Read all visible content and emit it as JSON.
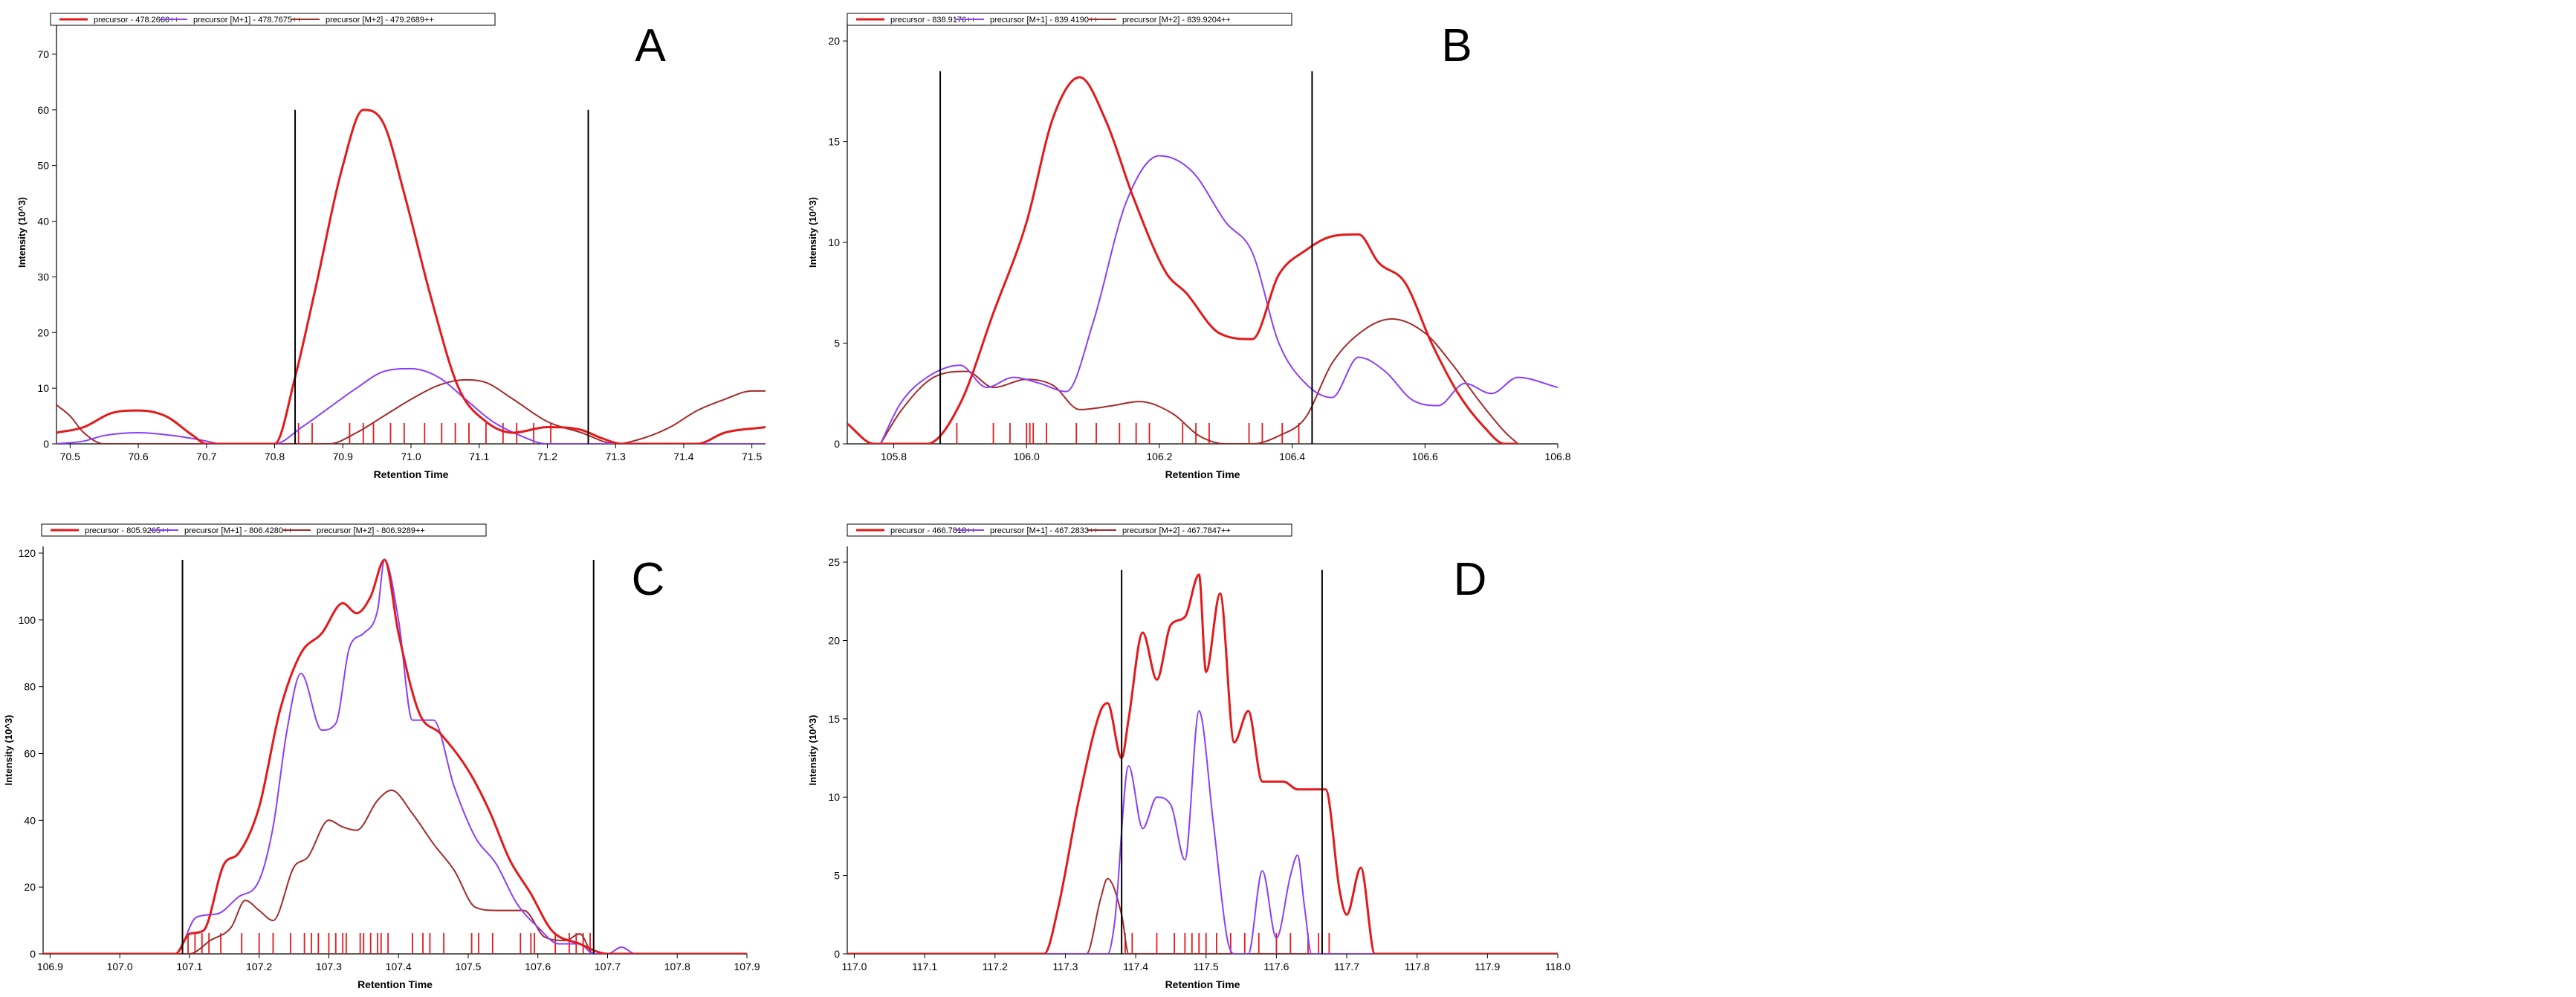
{
  "chart_data": [
    {
      "type": "line",
      "panel_label": "A",
      "xlabel": "Retention Time",
      "ylabel": "Intensity (10^3)",
      "xlim": [
        70.48,
        71.52
      ],
      "ylim": [
        0,
        76
      ],
      "xticks": [
        "70.5",
        "70.6",
        "70.7",
        "70.8",
        "70.9",
        "71.0",
        "71.1",
        "71.2",
        "71.3",
        "71.4",
        "71.5"
      ],
      "yticks": [
        "0",
        "10",
        "20",
        "30",
        "40",
        "50",
        "60",
        "70"
      ],
      "vlines": [
        70.83,
        71.26
      ],
      "vline_top": 60,
      "ms_ticks": [
        70.835,
        70.855,
        70.91,
        70.93,
        70.945,
        70.97,
        70.99,
        71.02,
        71.045,
        71.065,
        71.085,
        71.11,
        71.135,
        71.155,
        71.18,
        71.205
      ],
      "series": [
        {
          "name": "precursor - 478.2660++",
          "color": "#e31a1c",
          "width": 3,
          "x": [
            70.48,
            70.52,
            70.56,
            70.6,
            70.64,
            70.68,
            70.7,
            70.72,
            70.78,
            70.8,
            70.83,
            70.86,
            70.9,
            70.93,
            70.96,
            70.99,
            71.03,
            71.07,
            71.11,
            71.15,
            71.2,
            71.25,
            71.28,
            71.31,
            71.34,
            71.38,
            71.42,
            71.46,
            71.52
          ],
          "y": [
            2,
            3,
            5.5,
            6,
            5,
            1.5,
            0,
            0,
            0,
            0,
            12,
            28,
            50,
            60,
            57.5,
            45,
            26,
            10,
            4,
            2,
            3,
            2.5,
            1,
            0,
            0,
            0,
            0,
            2,
            3
          ]
        },
        {
          "name": "precursor [M+1] - 478.7675++",
          "color": "#8a3ffc",
          "width": 2,
          "x": [
            70.48,
            70.52,
            70.55,
            70.6,
            70.65,
            70.7,
            70.72,
            70.78,
            70.8,
            70.84,
            70.88,
            70.92,
            70.96,
            71.0,
            71.04,
            71.08,
            71.12,
            71.16,
            71.2,
            71.25,
            71.3,
            71.52
          ],
          "y": [
            0,
            0.5,
            1.5,
            2,
            1.5,
            0.5,
            0,
            0,
            0,
            3,
            6.5,
            10,
            13,
            13.5,
            12,
            8,
            4,
            1.5,
            0,
            0,
            0,
            0
          ]
        },
        {
          "name": "precursor [M+2] - 479.2689++",
          "color": "#a52a2a",
          "width": 2,
          "x": [
            70.48,
            70.5,
            70.52,
            70.55,
            70.6,
            70.7,
            70.8,
            70.88,
            70.92,
            70.96,
            71.0,
            71.04,
            71.08,
            71.11,
            71.15,
            71.2,
            71.25,
            71.3,
            71.34,
            71.38,
            71.42,
            71.46,
            71.5,
            71.52
          ],
          "y": [
            7,
            5,
            2,
            0,
            0,
            0,
            0,
            0,
            2,
            5,
            8,
            10.5,
            11.5,
            11,
            8,
            4,
            2,
            0,
            1,
            3,
            6,
            8,
            9.5,
            9.5
          ]
        }
      ]
    },
    {
      "type": "line",
      "panel_label": "B",
      "xlabel": "Retention Time",
      "ylabel": "Intensity (10^3)",
      "xlim": [
        105.73,
        106.8
      ],
      "ylim": [
        0,
        21
      ],
      "xticks": [
        "105.8",
        "106.0",
        "106.2",
        "106.4",
        "106.6",
        "106.8"
      ],
      "yticks": [
        "0",
        "5",
        "10",
        "15",
        "20"
      ],
      "vlines": [
        105.87,
        106.43
      ],
      "vline_top": 18.5,
      "ms_ticks": [
        105.87,
        105.895,
        105.95,
        105.975,
        106.0,
        106.005,
        106.01,
        106.03,
        106.075,
        106.105,
        106.14,
        106.165,
        106.185,
        106.235,
        106.255,
        106.275,
        106.335,
        106.355,
        106.385,
        106.41
      ],
      "series": [
        {
          "name": "precursor - 838.9176++",
          "color": "#e31a1c",
          "width": 3,
          "x": [
            105.73,
            105.77,
            105.8,
            105.85,
            105.9,
            105.95,
            106.0,
            106.04,
            106.08,
            106.12,
            106.16,
            106.21,
            106.24,
            106.29,
            106.34,
            106.38,
            106.42,
            106.46,
            106.5,
            106.53,
            106.57,
            106.61,
            106.65,
            106.69,
            106.72,
            106.74
          ],
          "y": [
            1,
            0,
            0,
            0,
            2,
            6.5,
            11,
            16.2,
            18.2,
            16,
            12.3,
            8.5,
            7.5,
            5.5,
            5.2,
            8.4,
            9.6,
            10.3,
            10.4,
            9,
            8,
            5,
            2.5,
            0.8,
            0,
            0
          ]
        },
        {
          "name": "precursor [M+1] - 839.4190++",
          "color": "#8a3ffc",
          "width": 2,
          "x": [
            105.78,
            105.81,
            105.85,
            105.9,
            105.94,
            105.98,
            106.02,
            106.06,
            106.1,
            106.15,
            106.2,
            106.25,
            106.3,
            106.34,
            106.38,
            106.42,
            106.46,
            106.5,
            106.54,
            106.58,
            106.62,
            106.66,
            106.7,
            106.74,
            106.8
          ],
          "y": [
            0,
            2,
            3.3,
            3.9,
            2.8,
            3.3,
            3.0,
            2.6,
            6,
            12,
            14.3,
            13.5,
            11,
            9.5,
            5,
            3,
            2.3,
            4.3,
            3.6,
            2.2,
            1.9,
            3.0,
            2.5,
            3.3,
            2.8
          ]
        },
        {
          "name": "precursor [M+2] - 839.9204++",
          "color": "#a52a2a",
          "width": 2,
          "x": [
            105.78,
            105.81,
            105.86,
            105.91,
            105.95,
            106.0,
            106.04,
            106.08,
            106.13,
            106.17,
            106.22,
            106.26,
            106.3,
            106.34,
            106.38,
            106.42,
            106.46,
            106.51,
            106.55,
            106.6,
            106.64,
            106.68,
            106.72,
            106.74
          ],
          "y": [
            0,
            1.6,
            3.3,
            3.6,
            2.8,
            3.2,
            2.9,
            1.7,
            1.9,
            2.1,
            1.5,
            0.4,
            0,
            0,
            0.4,
            1.3,
            4,
            5.7,
            6.2,
            5.5,
            4,
            2.2,
            0.6,
            0
          ]
        }
      ]
    },
    {
      "type": "line",
      "panel_label": "C",
      "xlabel": "Retention Time",
      "ylabel": "Intensity (10^3)",
      "xlim": [
        106.89,
        107.9
      ],
      "ylim": [
        0,
        122
      ],
      "xticks": [
        "106.9",
        "107.0",
        "107.1",
        "107.2",
        "107.3",
        "107.4",
        "107.5",
        "107.6",
        "107.7",
        "107.8",
        "107.9"
      ],
      "yticks": [
        "0",
        "20",
        "40",
        "60",
        "80",
        "100",
        "120"
      ],
      "vlines": [
        107.09,
        107.68
      ],
      "vline_top": 118,
      "ms_ticks": [
        107.098,
        107.108,
        107.118,
        107.128,
        107.145,
        107.175,
        107.2,
        107.22,
        107.245,
        107.265,
        107.275,
        107.285,
        107.3,
        107.31,
        107.32,
        107.325,
        107.345,
        107.35,
        107.36,
        107.37,
        107.375,
        107.385,
        107.42,
        107.435,
        107.445,
        107.465,
        107.505,
        107.515,
        107.535,
        107.575,
        107.59,
        107.595,
        107.625,
        107.645,
        107.655,
        107.665,
        107.675
      ],
      "series": [
        {
          "name": "precursor - 805.9265++",
          "color": "#e31a1c",
          "width": 3,
          "x": [
            106.89,
            107.08,
            107.1,
            107.12,
            107.15,
            107.17,
            107.2,
            107.23,
            107.26,
            107.29,
            107.32,
            107.34,
            107.36,
            107.38,
            107.4,
            107.43,
            107.46,
            107.5,
            107.53,
            107.56,
            107.59,
            107.62,
            107.66,
            107.7,
            107.9
          ],
          "y": [
            0,
            0,
            6,
            7,
            27,
            30,
            44,
            73,
            90,
            96,
            105,
            102,
            107,
            118,
            96,
            72,
            66,
            55,
            43,
            28,
            18,
            7,
            3,
            0,
            0
          ]
        },
        {
          "name": "precursor [M+1] - 806.4280++",
          "color": "#8a3ffc",
          "width": 2,
          "x": [
            106.89,
            107.08,
            107.11,
            107.14,
            107.17,
            107.2,
            107.22,
            107.24,
            107.26,
            107.29,
            107.31,
            107.33,
            107.35,
            107.37,
            107.38,
            107.4,
            107.42,
            107.45,
            107.48,
            107.51,
            107.54,
            107.57,
            107.6,
            107.63,
            107.66,
            107.68,
            107.7,
            107.72,
            107.74,
            107.9
          ],
          "y": [
            0,
            0,
            11,
            12,
            17,
            22,
            38,
            67,
            84,
            67,
            69,
            92,
            96,
            103,
            118,
            100,
            70,
            70,
            50,
            35,
            27,
            15,
            8,
            3,
            3,
            0,
            0,
            2,
            0,
            0
          ]
        },
        {
          "name": "precursor [M+2] - 806.9289++",
          "color": "#a52a2a",
          "width": 2,
          "x": [
            106.89,
            107.1,
            107.13,
            107.16,
            107.18,
            107.2,
            107.22,
            107.25,
            107.27,
            107.3,
            107.32,
            107.34,
            107.37,
            107.39,
            107.42,
            107.45,
            107.48,
            107.51,
            107.54,
            107.58,
            107.61,
            107.64,
            107.66,
            107.68,
            107.9
          ],
          "y": [
            0,
            0,
            4,
            8,
            16,
            13,
            10,
            26,
            29,
            40,
            38,
            37,
            46,
            49,
            42,
            33,
            25,
            14,
            13,
            13,
            5,
            4,
            6,
            0,
            0
          ]
        }
      ]
    },
    {
      "type": "line",
      "panel_label": "D",
      "xlabel": "Retention Time",
      "ylabel": "Intensity (10^3)",
      "xlim": [
        116.99,
        118.0
      ],
      "ylim": [
        0,
        26
      ],
      "xticks": [
        "117.0",
        "117.1",
        "117.2",
        "117.3",
        "117.4",
        "117.5",
        "117.6",
        "117.7",
        "117.8",
        "117.9",
        "118.0"
      ],
      "yticks": [
        "0",
        "5",
        "10",
        "15",
        "20",
        "25"
      ],
      "vlines": [
        117.38,
        117.665
      ],
      "vline_top": 24.5,
      "ms_ticks": [
        117.385,
        117.395,
        117.43,
        117.455,
        117.47,
        117.48,
        117.49,
        117.5,
        117.515,
        117.535,
        117.555,
        117.575,
        117.6,
        117.62,
        117.645,
        117.66,
        117.665,
        117.675
      ],
      "series": [
        {
          "name": "precursor - 466.7818++",
          "color": "#e31a1c",
          "width": 3,
          "x": [
            116.99,
            117.27,
            117.29,
            117.32,
            117.35,
            117.36,
            117.38,
            117.39,
            117.41,
            117.43,
            117.45,
            117.47,
            117.49,
            117.5,
            117.52,
            117.54,
            117.56,
            117.58,
            117.61,
            117.63,
            117.65,
            117.67,
            117.69,
            117.7,
            117.72,
            117.74,
            117.76,
            118.0
          ],
          "y": [
            0,
            0,
            3,
            10,
            15.5,
            16,
            12.5,
            15,
            20.5,
            17.5,
            21,
            21.5,
            24.2,
            18,
            23,
            13.5,
            15.5,
            11,
            11,
            10.5,
            10.5,
            10.5,
            4,
            2.5,
            5.5,
            0,
            0,
            0
          ]
        },
        {
          "name": "precursor [M+1] - 467.2833++",
          "color": "#8a3ffc",
          "width": 2,
          "x": [
            116.99,
            117.36,
            117.37,
            117.39,
            117.41,
            117.43,
            117.45,
            117.47,
            117.49,
            117.51,
            117.53,
            117.54,
            117.56,
            117.58,
            117.6,
            117.62,
            117.63,
            117.64,
            117.65,
            118.0
          ],
          "y": [
            0,
            0,
            2,
            12,
            8,
            10,
            9.5,
            6,
            15.5,
            8.5,
            1,
            0,
            0,
            5.3,
            1,
            5,
            6.3,
            3,
            0,
            0
          ]
        },
        {
          "name": "precursor [M+2] - 467.7847++",
          "color": "#a52a2a",
          "width": 2,
          "x": [
            116.99,
            117.33,
            117.35,
            117.36,
            117.38,
            117.39,
            118.0
          ],
          "y": [
            0,
            0,
            3.5,
            4.8,
            2.5,
            0,
            0
          ]
        }
      ]
    }
  ]
}
